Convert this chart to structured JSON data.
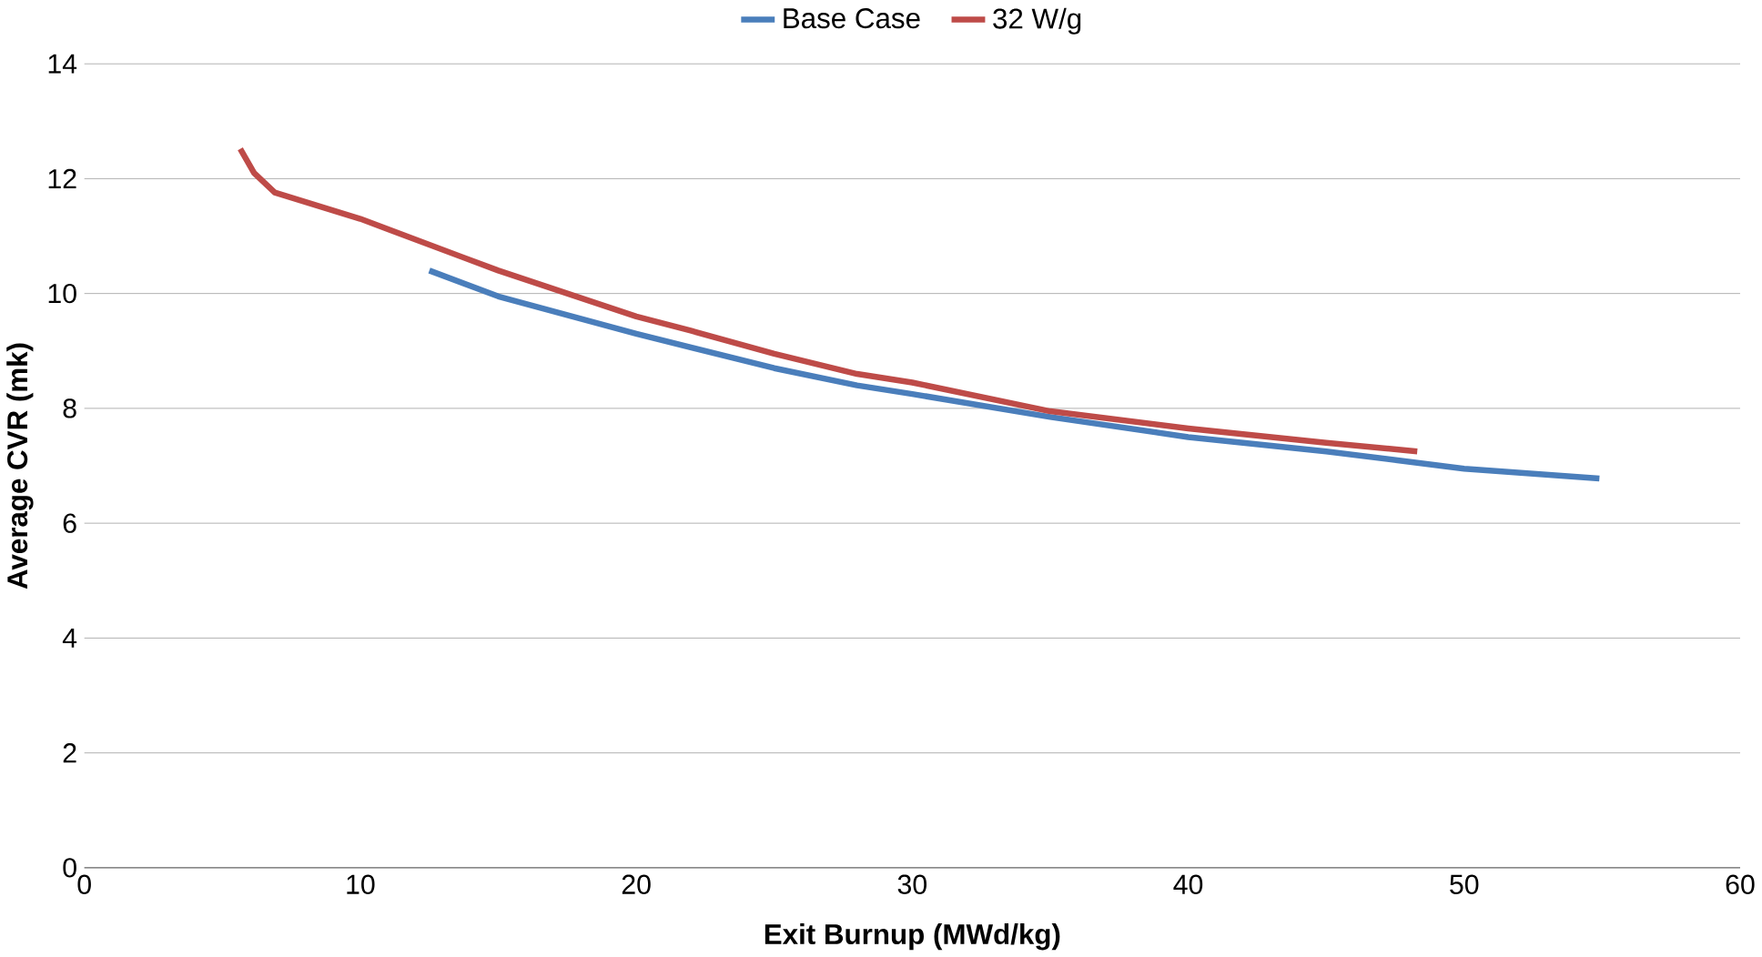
{
  "chart_data": {
    "type": "line",
    "xlabel": "Exit Burnup (MWd/kg)",
    "ylabel": "Average CVR (mk)",
    "xlim": [
      0,
      60
    ],
    "xticks": [
      0,
      10,
      20,
      30,
      40,
      50,
      60
    ],
    "ylim": [
      0,
      14
    ],
    "yticks": [
      0,
      2,
      4,
      6,
      8,
      10,
      12,
      14
    ],
    "grid": "y",
    "legend": "top",
    "marker": "none",
    "line_style": "solid",
    "series": [
      {
        "name": "Base Case",
        "color": "#4a7ebb",
        "x": [
          12.5,
          15,
          20,
          25,
          28,
          30,
          35,
          40,
          45,
          50,
          54.9
        ],
        "values": [
          10.4,
          9.95,
          9.3,
          8.7,
          8.4,
          8.25,
          7.85,
          7.5,
          7.25,
          6.95,
          6.78
        ]
      },
      {
        "name": "32 W/g",
        "color": "#be4b48",
        "x": [
          5.65,
          6.15,
          6.9,
          10,
          15,
          20,
          22,
          25,
          28,
          30,
          35,
          40,
          45,
          48.3
        ],
        "values": [
          12.52,
          12.1,
          11.76,
          11.3,
          10.4,
          9.6,
          9.35,
          8.95,
          8.6,
          8.45,
          7.95,
          7.65,
          7.4,
          7.25
        ]
      }
    ]
  }
}
